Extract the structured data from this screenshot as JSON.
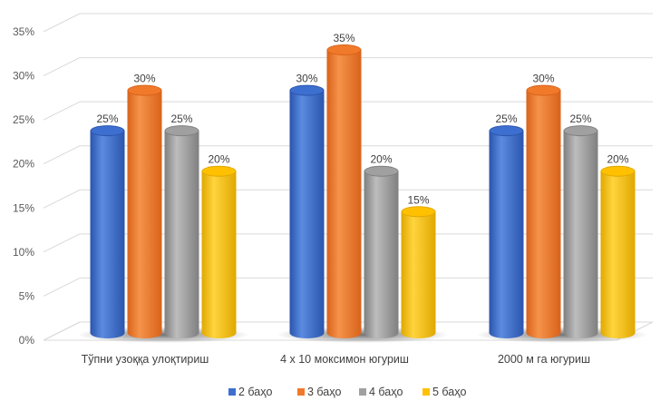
{
  "chart_data": {
    "type": "bar",
    "categories": [
      "Тўпни узоққа улоқтириш",
      "4 x 10 моксимон югуриш",
      "2000 м га югуриш"
    ],
    "series": [
      {
        "name": "2 баҳо",
        "values": [
          25,
          30,
          25
        ],
        "color": "#3d6fd0",
        "dark": "#2a55ad",
        "light": "#5b8be0"
      },
      {
        "name": "3 баҳо",
        "values": [
          30,
          35,
          30
        ],
        "color": "#f07a2a",
        "dark": "#d9621a",
        "light": "#f5934a"
      },
      {
        "name": "4 баҳо",
        "values": [
          25,
          20,
          25
        ],
        "color": "#a0a0a0",
        "dark": "#7f7f7f",
        "light": "#bdbdbd"
      },
      {
        "name": "5 баҳо",
        "values": [
          20,
          15,
          20
        ],
        "color": "#ffc000",
        "dark": "#e0a800",
        "light": "#ffd43d"
      }
    ],
    "ylim": [
      0,
      35
    ],
    "yticks": [
      0,
      5,
      10,
      15,
      20,
      25,
      30,
      35
    ],
    "ytick_labels": [
      "0%",
      "5%",
      "10%",
      "15%",
      "20%",
      "25%",
      "30%",
      "35%"
    ],
    "value_suffix": "%",
    "grid": true,
    "legend_position": "bottom",
    "title": "",
    "xlabel": "",
    "ylabel": ""
  }
}
